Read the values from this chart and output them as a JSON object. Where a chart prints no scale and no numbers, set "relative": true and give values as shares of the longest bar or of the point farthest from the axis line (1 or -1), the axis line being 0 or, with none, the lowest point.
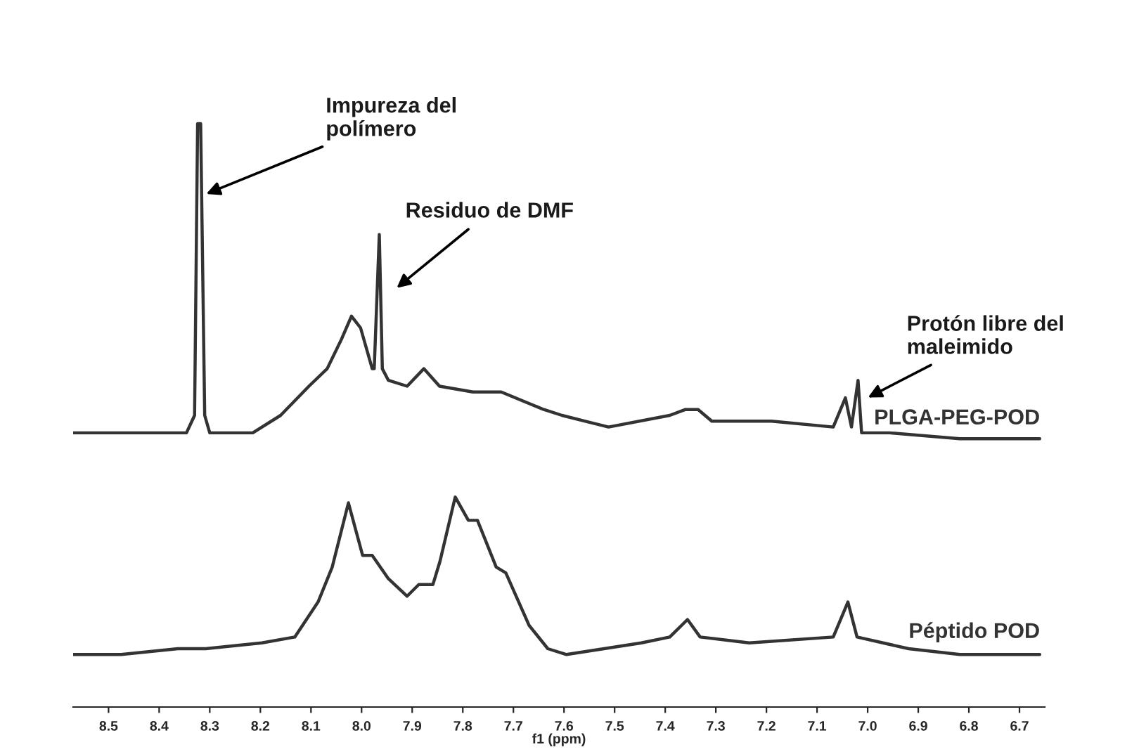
{
  "chart_data": {
    "type": "line",
    "relative": true,
    "xlim": [
      8.57,
      6.65
    ],
    "grid": false,
    "legend": false,
    "tick_labels": "x",
    "xlabel": "f1 (ppm)",
    "xticks": [
      8.5,
      8.4,
      8.3,
      8.2,
      8.1,
      {
        "value": 8.0,
        "label": "8.0"
      },
      7.9,
      7.8,
      7.7,
      7.6,
      7.5,
      7.4,
      7.3,
      7.2,
      7.1,
      {
        "value": 7.0,
        "label": "7.0"
      },
      6.9,
      6.8,
      6.7
    ],
    "series": [
      {
        "name": "PLGA-PEG-POD",
        "color": "#333333",
        "x": [
          8.57,
          8.535,
          8.475,
          8.346,
          8.33,
          8.324,
          8.318,
          8.31,
          8.3,
          8.215,
          8.16,
          8.104,
          8.068,
          8.04,
          8.02,
          8.002,
          7.979,
          7.975,
          7.965,
          7.959,
          7.947,
          7.91,
          7.877,
          7.846,
          7.78,
          7.724,
          7.64,
          7.604,
          7.558,
          7.512,
          7.391,
          7.36,
          7.335,
          7.308,
          7.19,
          7.068,
          7.044,
          7.032,
          7.019,
          7.012,
          6.957,
          6.818,
          6.66
        ],
        "values": [
          0.47,
          0.47,
          0.47,
          0.47,
          0.5,
          1.0,
          1.0,
          0.5,
          0.47,
          0.47,
          0.5,
          0.55,
          0.58,
          0.63,
          0.67,
          0.65,
          0.58,
          0.58,
          0.81,
          0.58,
          0.56,
          0.55,
          0.58,
          0.55,
          0.54,
          0.54,
          0.51,
          0.5,
          0.49,
          0.48,
          0.5,
          0.51,
          0.51,
          0.49,
          0.49,
          0.48,
          0.53,
          0.48,
          0.56,
          0.47,
          0.47,
          0.46,
          0.46
        ]
      },
      {
        "name": "Péptido POD",
        "color": "#333333",
        "x": [
          8.57,
          8.475,
          8.363,
          8.308,
          8.197,
          8.132,
          8.086,
          8.058,
          8.026,
          7.998,
          7.979,
          7.947,
          7.91,
          7.887,
          7.859,
          7.845,
          7.815,
          7.789,
          7.771,
          7.734,
          7.715,
          7.669,
          7.632,
          7.595,
          7.447,
          7.391,
          7.356,
          7.331,
          7.234,
          7.068,
          7.039,
          7.021,
          6.919,
          6.818,
          6.66
        ],
        "values": [
          0.09,
          0.09,
          0.1,
          0.1,
          0.11,
          0.12,
          0.18,
          0.24,
          0.35,
          0.26,
          0.26,
          0.22,
          0.19,
          0.21,
          0.21,
          0.25,
          0.36,
          0.32,
          0.32,
          0.24,
          0.23,
          0.14,
          0.1,
          0.09,
          0.11,
          0.12,
          0.15,
          0.12,
          0.11,
          0.12,
          0.18,
          0.12,
          0.1,
          0.09,
          0.09
        ]
      }
    ],
    "annotations": [
      "Impureza del\npolímero",
      "Residuo de DMF",
      "Protón libre del\nmaleimido"
    ]
  }
}
